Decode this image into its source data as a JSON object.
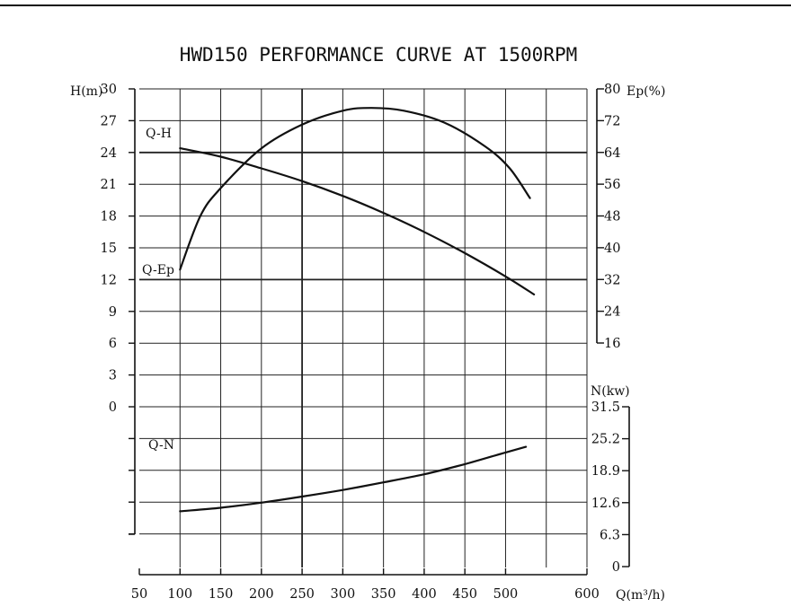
{
  "chart_data": {
    "type": "line",
    "title": "HWD150 PERFORMANCE CURVE AT 1500RPM",
    "x_axis": {
      "label": "Q(m³/h)",
      "range": [
        50,
        600
      ],
      "ticks": [
        "50",
        "100",
        "150",
        "200",
        "250",
        "300",
        "350",
        "400",
        "450",
        "500",
        "600"
      ]
    },
    "y_axis_head": {
      "label": "H(m)",
      "range": [
        0,
        30
      ],
      "ticks": [
        "30",
        "27",
        "24",
        "21",
        "18",
        "15",
        "12",
        "9",
        "6",
        "3",
        "0"
      ]
    },
    "y_axis_efficiency": {
      "label": "Ep(%)",
      "range": [
        16,
        80
      ],
      "ticks": [
        "80",
        "72",
        "64",
        "56",
        "48",
        "40",
        "32",
        "24",
        "16"
      ]
    },
    "y_axis_power": {
      "label": "N(kw)",
      "range": [
        0,
        31.5
      ],
      "ticks": [
        "31.5",
        "25.2",
        "18.9",
        "12.6",
        "6.3",
        "0"
      ]
    },
    "grid": true,
    "series": [
      {
        "name": "Q-H",
        "axis": "head",
        "x": [
          100,
          150,
          200,
          250,
          300,
          350,
          400,
          450,
          500,
          535
        ],
        "y": [
          24.4,
          23.6,
          22.5,
          21.3,
          19.9,
          18.3,
          16.5,
          14.5,
          12.3,
          10.6
        ]
      },
      {
        "name": "Q-Ep",
        "axis": "efficiency",
        "x": [
          100,
          125,
          150,
          200,
          250,
          300,
          335,
          375,
          425,
          475,
          505,
          530
        ],
        "y": [
          34.5,
          48,
          55,
          65,
          71,
          74.5,
          75.2,
          74.5,
          71.5,
          65.5,
          60,
          52.5
        ]
      },
      {
        "name": "Q-N",
        "axis": "power",
        "x": [
          100,
          150,
          200,
          250,
          300,
          350,
          400,
          450,
          500,
          525
        ],
        "y": [
          10.9,
          11.6,
          12.6,
          13.8,
          15.1,
          16.6,
          18.2,
          20.2,
          22.5,
          23.6
        ]
      }
    ]
  }
}
